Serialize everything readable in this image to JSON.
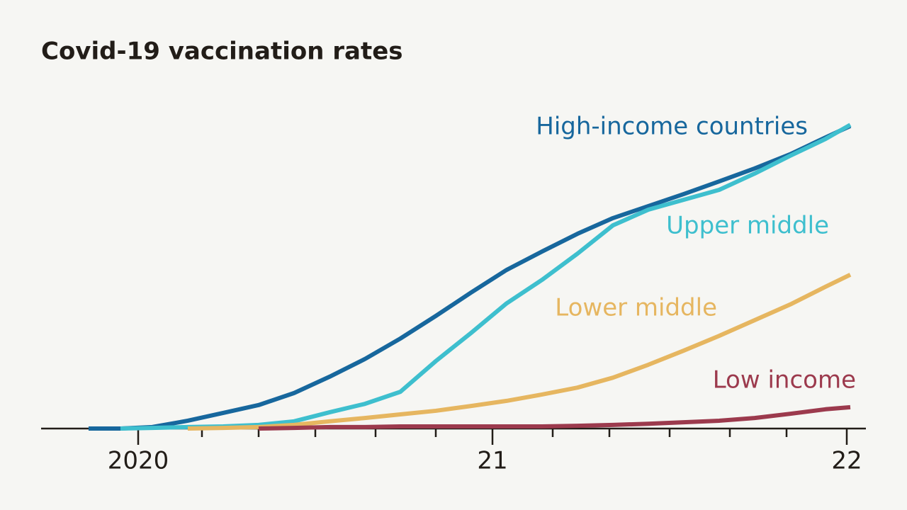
{
  "chart_data": {
    "type": "line",
    "title": "Covid-19 vaccination rates",
    "x": [
      2019.86,
      2019.95,
      2020.04,
      2020.14,
      2020.24,
      2020.34,
      2020.44,
      2020.54,
      2020.64,
      2020.74,
      2020.84,
      2020.94,
      2021.04,
      2021.14,
      2021.24,
      2021.34,
      2021.44,
      2021.54,
      2021.64,
      2021.74,
      2021.84,
      2021.94,
      2022.01
    ],
    "series": [
      {
        "name": "High-income countries",
        "color": "#17679d",
        "values": [
          0,
          0,
          0.5,
          2.6,
          5.2,
          7.8,
          11.8,
          17.2,
          23.1,
          29.9,
          37.4,
          45.2,
          52.7,
          58.8,
          64.7,
          69.9,
          73.9,
          77.9,
          82.1,
          86.4,
          91.1,
          96.7,
          100.5
        ]
      },
      {
        "name": "Upper middle",
        "color": "#3ebfce",
        "values": [
          null,
          0,
          0.2,
          0.5,
          0.7,
          1.2,
          2.4,
          5.4,
          8.2,
          12.2,
          22.4,
          31.8,
          41.6,
          49.4,
          58.1,
          67.5,
          72.7,
          76.0,
          79.3,
          84.7,
          90.6,
          96.2,
          100.9
        ]
      },
      {
        "name": "Lower middle",
        "color": "#e6b660",
        "values": [
          null,
          null,
          null,
          0,
          0.2,
          0.5,
          1.2,
          2.4,
          3.5,
          4.7,
          5.9,
          7.5,
          9.2,
          11.3,
          13.6,
          16.9,
          21.2,
          25.9,
          30.8,
          36,
          41.2,
          47.1,
          51.1
        ]
      },
      {
        "name": "Low income",
        "color": "#9c3a4d",
        "values": [
          null,
          null,
          null,
          null,
          null,
          0,
          0.2,
          0.5,
          0.5,
          0.7,
          0.7,
          0.7,
          0.7,
          0.7,
          0.9,
          1.2,
          1.6,
          2.1,
          2.6,
          3.5,
          4.9,
          6.4,
          7.1
        ]
      }
    ],
    "xlim": [
      2019.85,
      2022.05
    ],
    "ylim": [
      0,
      100
    ],
    "xticks": [
      {
        "value": 2020,
        "label": "2020"
      },
      {
        "value": 2021,
        "label": "21"
      },
      {
        "value": 2022,
        "label": "22"
      }
    ],
    "xminor_ticks": [
      2020.18,
      2020.34,
      2020.5,
      2020.67,
      2020.84,
      2021.17,
      2021.33,
      2021.5,
      2021.67,
      2021.83
    ]
  }
}
